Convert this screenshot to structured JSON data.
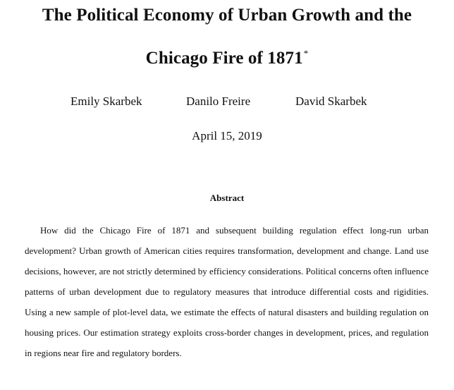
{
  "document": {
    "title_line_1": "The Political Economy of Urban Growth and the",
    "title_line_2": "Chicago Fire of 1871",
    "title_footnote_mark": "*",
    "authors": [
      "Emily Skarbek",
      "Danilo Freire",
      "David Skarbek"
    ],
    "date": "April 15, 2019",
    "abstract_heading": "Abstract",
    "abstract_text": "How did the Chicago Fire of 1871 and subsequent building regulation effect long-run urban development? Urban growth of American cities requires transformation, development and change. Land use decisions, however, are not strictly determined by efficiency considerations. Political concerns often influence patterns of urban development due to regulatory measures that introduce differential costs and rigidities. Using a new sample of plot-level data, we estimate the effects of natural disasters and building regulation on housing prices. Our estimation strategy exploits cross-border changes in development, prices, and regulation in regions near fire and regulatory borders."
  }
}
